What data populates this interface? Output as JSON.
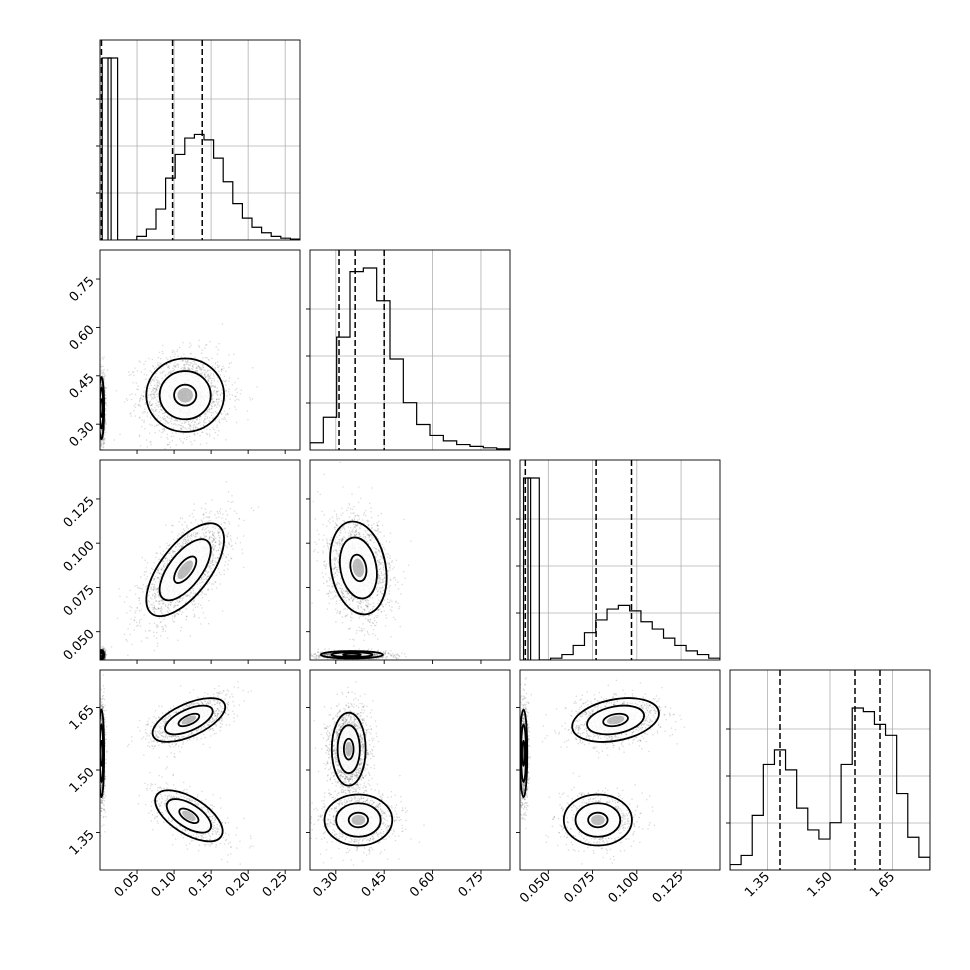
{
  "chart_data": {
    "type": "corner",
    "parameters": 4,
    "colors": {
      "ink": "#000000",
      "grid": "#b0b0b0",
      "scatter": "#555555"
    },
    "grid": true,
    "axes": [
      {
        "range": [
          0.0,
          0.27
        ],
        "ticks": [
          0.05,
          0.1,
          0.15,
          0.2,
          0.25
        ],
        "tick_labels": [
          "0.05",
          "0.10",
          "0.15",
          "0.20",
          "0.25"
        ]
      },
      {
        "range": [
          0.22,
          0.84
        ],
        "ticks": [
          0.3,
          0.45,
          0.6,
          0.75
        ],
        "tick_labels": [
          "0.30",
          "0.45",
          "0.60",
          "0.75"
        ]
      },
      {
        "range": [
          0.034,
          0.147
        ],
        "ticks": [
          0.05,
          0.075,
          0.1,
          0.125
        ],
        "tick_labels": [
          "0.050",
          "0.075",
          "0.100",
          "0.125"
        ]
      },
      {
        "range": [
          1.26,
          1.74
        ],
        "ticks": [
          1.35,
          1.5,
          1.65
        ],
        "tick_labels": [
          "1.35",
          "1.50",
          "1.65"
        ]
      }
    ],
    "histograms": [
      {
        "counts": [
          1.0,
          0,
          0,
          0.02,
          0.06,
          0.17,
          0.34,
          0.47,
          0.56,
          0.58,
          0.55,
          0.45,
          0.32,
          0.2,
          0.12,
          0.07,
          0.04,
          0.02,
          0.01,
          0.005
        ],
        "spike": {
          "x": 0.003,
          "height": 1.0,
          "width": 0.012
        },
        "quantiles": [
          0.002,
          0.098,
          0.138
        ]
      },
      {
        "counts": [
          0.04,
          0.18,
          0.62,
          0.98,
          1.0,
          0.82,
          0.5,
          0.26,
          0.14,
          0.08,
          0.05,
          0.03,
          0.02,
          0.012,
          0.006
        ],
        "quantiles": [
          0.31,
          0.36,
          0.45
        ]
      },
      {
        "counts": [
          1.0,
          0,
          0.01,
          0.03,
          0.08,
          0.15,
          0.22,
          0.28,
          0.3,
          0.27,
          0.21,
          0.17,
          0.12,
          0.08,
          0.05,
          0.03,
          0.01
        ],
        "spike": {
          "x": 0.036,
          "height": 1.0,
          "width": 0.004
        },
        "quantiles": [
          0.037,
          0.077,
          0.097
        ]
      },
      {
        "counts": [
          0.03,
          0.08,
          0.3,
          0.58,
          0.66,
          0.55,
          0.34,
          0.22,
          0.17,
          0.26,
          0.58,
          0.89,
          0.87,
          0.8,
          0.74,
          0.42,
          0.18,
          0.07
        ],
        "quantiles": [
          1.38,
          1.56,
          1.62
        ]
      }
    ],
    "scatter_panels": [
      {
        "row": 1,
        "col": 0,
        "clusters": [
          {
            "mean": [
              0.115,
              0.39
            ],
            "sd": [
              0.03,
              0.065
            ],
            "rho": 0.0,
            "share": 0.62
          },
          {
            "mean": [
              0.002,
              0.35
            ],
            "sd": [
              0.002,
              0.055
            ],
            "rho": 0.0,
            "share": 0.38
          }
        ]
      },
      {
        "row": 2,
        "col": 0,
        "clusters": [
          {
            "mean": [
              0.115,
              0.085
            ],
            "sd": [
              0.03,
              0.015
            ],
            "rho": 0.65,
            "share": 0.62
          },
          {
            "mean": [
              0.002,
              0.037
            ],
            "sd": [
              0.002,
              0.0015
            ],
            "rho": 0.0,
            "share": 0.38
          }
        ]
      },
      {
        "row": 3,
        "col": 0,
        "clusters": [
          {
            "mean": [
              0.12,
              1.62
            ],
            "sd": [
              0.028,
              0.03
            ],
            "rho": 0.6,
            "share": 0.37
          },
          {
            "mean": [
              0.12,
              1.39
            ],
            "sd": [
              0.026,
              0.035
            ],
            "rho": -0.6,
            "share": 0.25
          },
          {
            "mean": [
              0.002,
              1.54
            ],
            "sd": [
              0.002,
              0.06
            ],
            "rho": 0.0,
            "share": 0.38
          }
        ]
      },
      {
        "row": 2,
        "col": 1,
        "clusters": [
          {
            "mean": [
              0.37,
              0.086
            ],
            "sd": [
              0.05,
              0.015
            ],
            "rho": -0.2,
            "share": 0.62
          },
          {
            "mean": [
              0.35,
              0.037
            ],
            "sd": [
              0.055,
              0.0012
            ],
            "rho": 0.0,
            "share": 0.38
          }
        ]
      },
      {
        "row": 3,
        "col": 1,
        "clusters": [
          {
            "mean": [
              0.34,
              1.55
            ],
            "sd": [
              0.03,
              0.05
            ],
            "rho": 0.0,
            "share": 0.62
          },
          {
            "mean": [
              0.37,
              1.38
            ],
            "sd": [
              0.06,
              0.035
            ],
            "rho": 0.0,
            "share": 0.38
          }
        ]
      },
      {
        "row": 3,
        "col": 2,
        "clusters": [
          {
            "mean": [
              0.088,
              1.62
            ],
            "sd": [
              0.014,
              0.03
            ],
            "rho": 0.3,
            "share": 0.37
          },
          {
            "mean": [
              0.078,
              1.38
            ],
            "sd": [
              0.011,
              0.035
            ],
            "rho": 0.0,
            "share": 0.25
          },
          {
            "mean": [
              0.036,
              1.54
            ],
            "sd": [
              0.0012,
              0.06
            ],
            "rho": 0.0,
            "share": 0.38
          }
        ]
      }
    ]
  }
}
